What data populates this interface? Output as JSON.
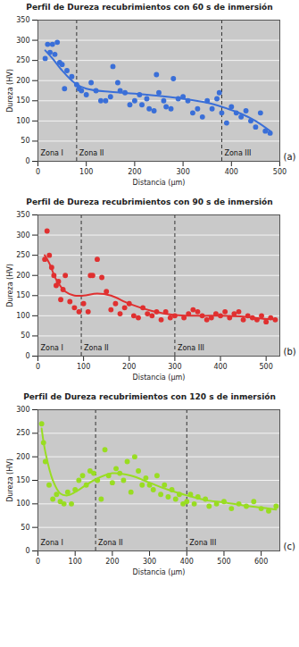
{
  "chart_data": [
    {
      "type": "scatter",
      "title": "Perfil de Dureza recubrimientos con 60 s de inmersión",
      "panel_label": "(a)",
      "x_label": "Distancia (µm)",
      "y_label": "Dureza (HV)",
      "xlim": [
        0,
        500
      ],
      "xticks": [
        0,
        100,
        200,
        300,
        400,
        500
      ],
      "ylim": [
        0,
        350
      ],
      "yticks": [
        0,
        50,
        100,
        150,
        200,
        250,
        300,
        350
      ],
      "grid": true,
      "zone_boundaries": [
        80,
        380
      ],
      "zone_labels": [
        "Zona I",
        "Zona II",
        "Zona III"
      ],
      "series": [
        {
          "type": "scatter",
          "color": "#3a6fd8",
          "marker": "circle",
          "x": [
            15,
            20,
            25,
            30,
            35,
            40,
            45,
            50,
            55,
            60,
            70,
            80,
            85,
            90,
            100,
            110,
            120,
            130,
            140,
            150,
            155,
            165,
            170,
            180,
            190,
            200,
            210,
            215,
            225,
            230,
            240,
            245,
            250,
            260,
            265,
            275,
            280,
            290,
            300,
            310,
            320,
            330,
            340,
            350,
            360,
            370,
            375,
            380,
            390,
            400,
            410,
            420,
            430,
            440,
            450,
            460,
            470,
            480
          ],
          "values": [
            255,
            290,
            270,
            290,
            265,
            295,
            245,
            240,
            180,
            225,
            210,
            190,
            180,
            175,
            165,
            195,
            175,
            150,
            150,
            160,
            235,
            195,
            175,
            170,
            140,
            150,
            165,
            140,
            155,
            130,
            125,
            215,
            170,
            150,
            135,
            130,
            205,
            155,
            160,
            150,
            120,
            130,
            110,
            150,
            130,
            155,
            170,
            120,
            95,
            135,
            120,
            110,
            125,
            100,
            85,
            120,
            75,
            70
          ]
        },
        {
          "type": "line",
          "color": "#3a6fd8",
          "line_style": "solid",
          "x": [
            15,
            30,
            50,
            75,
            100,
            150,
            200,
            250,
            300,
            350,
            380,
            420,
            450,
            480
          ],
          "values": [
            275,
            255,
            225,
            195,
            180,
            172,
            168,
            162,
            155,
            145,
            135,
            118,
            100,
            75
          ]
        }
      ]
    },
    {
      "type": "scatter",
      "title": "Perfil de Dureza recubrimientos con 90 s de inmersión",
      "panel_label": "(b)",
      "x_label": "Distancia (µm)",
      "y_label": "Dureza (HV)",
      "xlim": [
        0,
        530
      ],
      "xticks": [
        0,
        100,
        200,
        300,
        400,
        500
      ],
      "ylim": [
        0,
        350
      ],
      "yticks": [
        0,
        50,
        100,
        150,
        200,
        250,
        300,
        350
      ],
      "grid": true,
      "zone_boundaries": [
        95,
        300
      ],
      "zone_labels": [
        "Zona I",
        "Zona II",
        "Zona III"
      ],
      "series": [
        {
          "type": "scatter",
          "color": "#e03030",
          "marker": "circle",
          "x": [
            15,
            20,
            25,
            30,
            35,
            40,
            45,
            50,
            55,
            60,
            70,
            80,
            90,
            100,
            110,
            115,
            120,
            130,
            140,
            150,
            160,
            170,
            180,
            190,
            200,
            210,
            220,
            230,
            240,
            250,
            260,
            270,
            280,
            290,
            300,
            320,
            330,
            340,
            350,
            360,
            370,
            380,
            390,
            400,
            410,
            420,
            430,
            440,
            450,
            460,
            470,
            480,
            490,
            500,
            510,
            520
          ],
          "values": [
            240,
            310,
            250,
            220,
            200,
            175,
            185,
            140,
            165,
            200,
            135,
            120,
            110,
            130,
            110,
            200,
            200,
            240,
            195,
            160,
            115,
            130,
            105,
            120,
            130,
            100,
            95,
            120,
            105,
            100,
            110,
            90,
            110,
            95,
            100,
            95,
            105,
            115,
            110,
            100,
            90,
            95,
            105,
            100,
            110,
            95,
            105,
            110,
            90,
            100,
            95,
            90,
            100,
            85,
            95,
            90
          ]
        },
        {
          "type": "line",
          "color": "#e03030",
          "line_style": "solid",
          "x": [
            15,
            25,
            40,
            60,
            80,
            100,
            130,
            160,
            200,
            250,
            300,
            350,
            400,
            450,
            500,
            520
          ],
          "values": [
            250,
            230,
            190,
            160,
            150,
            150,
            155,
            150,
            130,
            112,
            102,
            100,
            100,
            98,
            92,
            92
          ]
        }
      ]
    },
    {
      "type": "scatter",
      "title": "Perfil de Dureza recubrimientos con 120 s de inmersión",
      "panel_label": "(c)",
      "x_label": "Distancia (µm)",
      "y_label": "Dureza (HV)",
      "xlim": [
        0,
        650
      ],
      "xticks": [
        0,
        100,
        200,
        300,
        400,
        500,
        600
      ],
      "ylim": [
        0,
        300
      ],
      "yticks": [
        0,
        50,
        100,
        150,
        200,
        250,
        300
      ],
      "grid": true,
      "zone_boundaries": [
        155,
        400
      ],
      "zone_labels": [
        "Zona I",
        "Zona II",
        "Zona III"
      ],
      "series": [
        {
          "type": "scatter",
          "color": "#99dd22",
          "marker": "circle",
          "x": [
            10,
            15,
            20,
            30,
            40,
            50,
            60,
            70,
            80,
            90,
            100,
            110,
            120,
            130,
            140,
            150,
            160,
            170,
            180,
            190,
            200,
            210,
            220,
            230,
            240,
            250,
            260,
            270,
            280,
            290,
            300,
            310,
            320,
            330,
            340,
            350,
            360,
            370,
            380,
            390,
            400,
            410,
            420,
            430,
            450,
            460,
            480,
            500,
            520,
            540,
            560,
            580,
            600,
            620,
            640
          ],
          "values": [
            270,
            230,
            190,
            140,
            110,
            120,
            105,
            100,
            125,
            100,
            130,
            150,
            160,
            140,
            170,
            165,
            150,
            110,
            215,
            160,
            145,
            175,
            165,
            150,
            190,
            125,
            200,
            170,
            140,
            155,
            140,
            130,
            160,
            120,
            140,
            115,
            130,
            110,
            120,
            100,
            105,
            120,
            100,
            115,
            110,
            95,
            100,
            105,
            90,
            100,
            95,
            105,
            90,
            85,
            95
          ]
        },
        {
          "type": "line",
          "color": "#99dd22",
          "line_style": "solid",
          "x": [
            10,
            20,
            40,
            60,
            80,
            100,
            150,
            200,
            250,
            300,
            350,
            400,
            450,
            500,
            550,
            600,
            640
          ],
          "values": [
            260,
            210,
            150,
            122,
            118,
            125,
            150,
            165,
            160,
            145,
            130,
            118,
            108,
            103,
            97,
            92,
            88
          ]
        }
      ]
    }
  ]
}
